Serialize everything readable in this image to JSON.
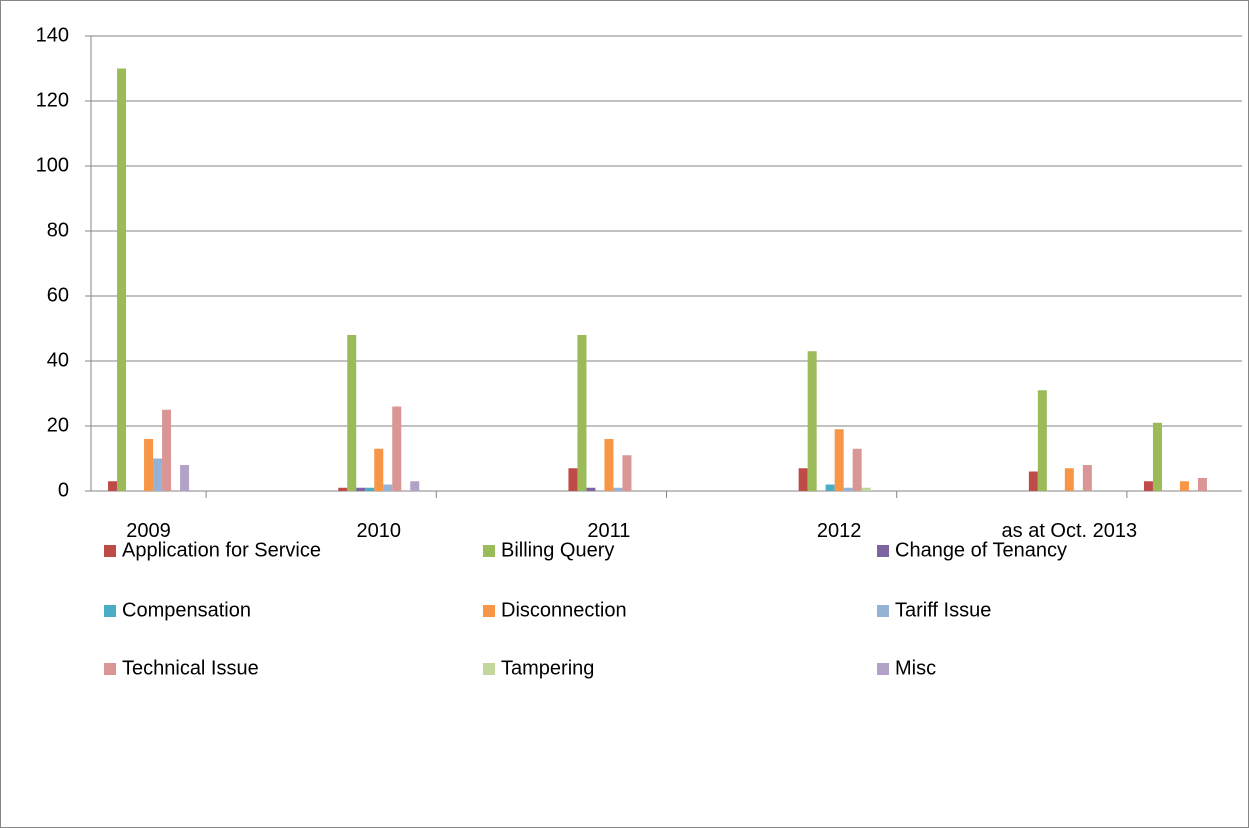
{
  "chart_data": {
    "type": "bar",
    "categories": [
      "2009",
      null,
      "2010",
      null,
      "2011",
      null,
      "2012",
      null,
      "as at Oct. 2013",
      null
    ],
    "series": [
      {
        "name": "Application for Service",
        "color": "#be4b48",
        "values": [
          3,
          null,
          1,
          null,
          7,
          null,
          7,
          null,
          6,
          3
        ]
      },
      {
        "name": "Billing Query",
        "color": "#9bbb59",
        "values": [
          130,
          null,
          48,
          null,
          48,
          null,
          43,
          null,
          31,
          21
        ]
      },
      {
        "name": "Change of Tenancy",
        "color": "#7f64a2",
        "values": [
          0,
          null,
          1,
          null,
          1,
          null,
          0,
          null,
          0,
          0
        ]
      },
      {
        "name": "Compensation",
        "color": "#4bacc6",
        "values": [
          0,
          null,
          1,
          null,
          0,
          null,
          2,
          null,
          0,
          0
        ]
      },
      {
        "name": "Disconnection",
        "color": "#f79646",
        "values": [
          16,
          null,
          13,
          null,
          16,
          null,
          19,
          null,
          7,
          3
        ]
      },
      {
        "name": "Tariff Issue",
        "color": "#95b3d7",
        "values": [
          10,
          null,
          2,
          null,
          1,
          null,
          1,
          null,
          0,
          0
        ]
      },
      {
        "name": "Technical Issue",
        "color": "#d99694",
        "values": [
          25,
          null,
          26,
          null,
          11,
          null,
          13,
          null,
          8,
          4
        ]
      },
      {
        "name": "Tampering",
        "color": "#c3d69b",
        "values": [
          0,
          null,
          0,
          null,
          0,
          null,
          1,
          null,
          0,
          0
        ]
      },
      {
        "name": "Misc",
        "color": "#b3a2c7",
        "values": [
          8,
          null,
          3,
          null,
          0,
          null,
          0,
          null,
          0,
          0
        ]
      }
    ],
    "ylim": [
      0,
      140
    ],
    "yticks": [
      0,
      20,
      40,
      60,
      80,
      100,
      120,
      140
    ],
    "grid": true,
    "legend": "bottom"
  }
}
